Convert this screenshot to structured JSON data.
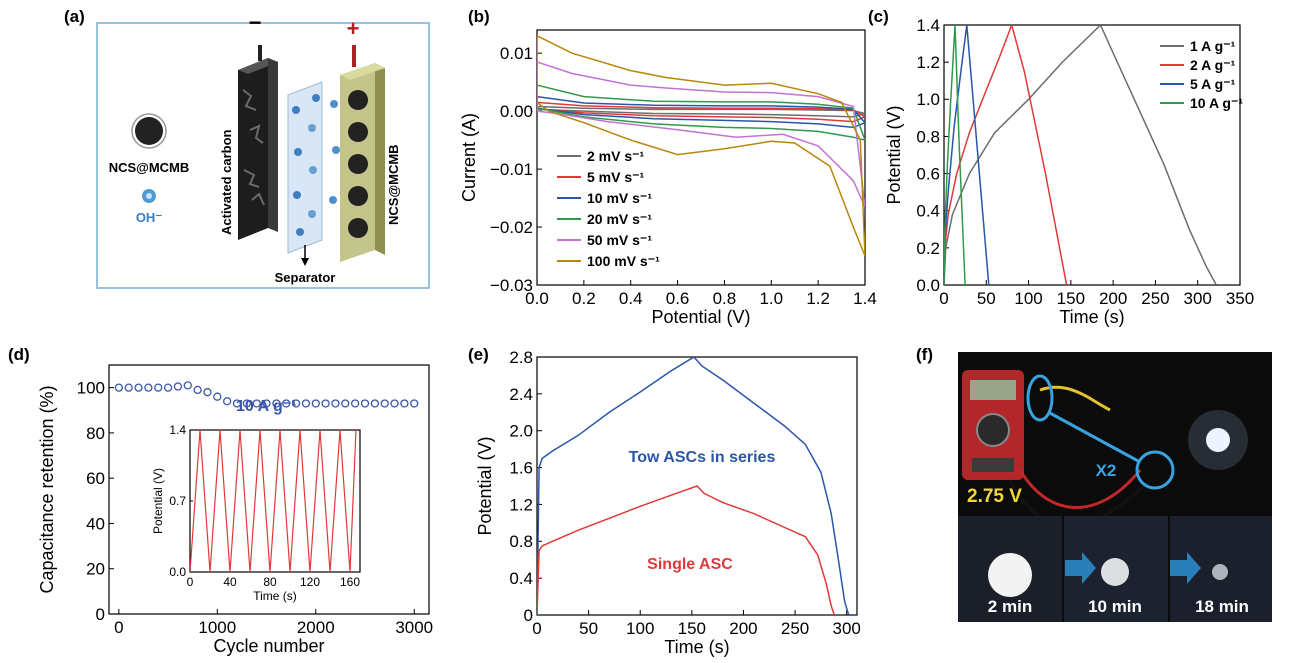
{
  "colors": {
    "gray": "#6d6d6d",
    "red": "#e0393a",
    "blue": "#2b56a8",
    "green": "#2f9a4b",
    "purple": "#c173d6",
    "gold": "#b8860b",
    "retention": "#3a56a8"
  },
  "panels": {
    "a": {
      "label": "(a)",
      "ncs_label": "NCS@MCMB",
      "oh_label": "OH⁻",
      "minus": "−",
      "plus": "+",
      "activated_carbon": "Activated carbon",
      "right_electrode": "NCS@MCMB",
      "separator": "Separator"
    },
    "f": {
      "label": "(f)",
      "voltage": "2.75 V",
      "x2": "X2",
      "times": [
        "2 min",
        "10 min",
        "18 min"
      ]
    }
  },
  "chart_data": [
    {
      "id": "b",
      "panel_label": "(b)",
      "type": "line",
      "xlabel": "Potential (V)",
      "ylabel": "Current (A)",
      "xlim": [
        0,
        1.4
      ],
      "ylim": [
        -0.03,
        0.014
      ],
      "xticks": [
        0.0,
        0.2,
        0.4,
        0.6,
        0.8,
        1.0,
        1.2,
        1.4
      ],
      "xtick_labels": [
        "0.0",
        "0.2",
        "0.4",
        "0.6",
        "0.8",
        "1.0",
        "1.2",
        "1.4"
      ],
      "yticks": [
        0.01,
        0.0,
        -0.01,
        -0.02,
        -0.03
      ],
      "ytick_labels": [
        "0.01",
        "0.00",
        "−0.01",
        "−0.02",
        "−0.03"
      ],
      "legend": "bottom-left",
      "series": [
        {
          "name": "2 mV s⁻¹",
          "color": "gray",
          "closed": true,
          "x": [
            0,
            0.2,
            0.5,
            0.8,
            1.0,
            1.2,
            1.35,
            1.4,
            1.35,
            1.2,
            1.0,
            0.8,
            0.5,
            0.2,
            0
          ],
          "y": [
            0.0008,
            0.0005,
            0.0003,
            0.0003,
            0.0003,
            0.0002,
            0.0001,
            -0.0004,
            -0.001,
            -0.0008,
            -0.0006,
            -0.0005,
            -0.0004,
            0.0,
            0.0003
          ]
        },
        {
          "name": "5 mV s⁻¹",
          "color": "red",
          "closed": true,
          "x": [
            0,
            0.2,
            0.5,
            0.8,
            1.0,
            1.2,
            1.35,
            1.4,
            1.35,
            1.2,
            1.0,
            0.8,
            0.5,
            0.2,
            0
          ],
          "y": [
            0.0015,
            0.0009,
            0.0006,
            0.0005,
            0.0005,
            0.0004,
            0.0002,
            -0.001,
            -0.0018,
            -0.0014,
            -0.0011,
            -0.001,
            -0.0008,
            -0.0003,
            0.0004
          ]
        },
        {
          "name": "10 mV s⁻¹",
          "color": "blue",
          "closed": true,
          "x": [
            0,
            0.2,
            0.5,
            0.8,
            1.0,
            1.2,
            1.35,
            1.4,
            1.35,
            1.2,
            1.0,
            0.8,
            0.5,
            0.2,
            0
          ],
          "y": [
            0.0025,
            0.0014,
            0.001,
            0.0009,
            0.0009,
            0.0007,
            0.0003,
            -0.002,
            -0.0028,
            -0.0022,
            -0.0018,
            -0.0016,
            -0.0013,
            -0.0006,
            0.0005
          ]
        },
        {
          "name": "20 mV s⁻¹",
          "color": "green",
          "closed": true,
          "x": [
            0,
            0.2,
            0.5,
            0.8,
            1.0,
            1.2,
            1.35,
            1.4,
            1.35,
            1.2,
            1.0,
            0.8,
            0.5,
            0.2,
            0
          ],
          "y": [
            0.0045,
            0.0025,
            0.0017,
            0.0016,
            0.0016,
            0.0012,
            0.0005,
            -0.005,
            -0.0045,
            -0.0035,
            -0.003,
            -0.0028,
            -0.0022,
            -0.001,
            0.0005
          ]
        },
        {
          "name": "50 mV s⁻¹",
          "color": "purple",
          "closed": true,
          "x": [
            0,
            0.15,
            0.4,
            0.55,
            0.8,
            1.0,
            1.2,
            1.35,
            1.4,
            1.35,
            1.2,
            1.05,
            0.85,
            0.6,
            0.3,
            0.1,
            0
          ],
          "y": [
            0.0085,
            0.0065,
            0.0045,
            0.004,
            0.0033,
            0.0032,
            0.0025,
            0.0008,
            -0.0165,
            -0.012,
            -0.006,
            -0.004,
            -0.0045,
            -0.0032,
            -0.0018,
            -0.0005,
            0.0
          ]
        },
        {
          "name": "100 mV s⁻¹",
          "color": "gold",
          "closed": true,
          "x": [
            0,
            0.15,
            0.4,
            0.55,
            0.8,
            1.0,
            1.2,
            1.3,
            1.38,
            1.4,
            1.35,
            1.25,
            1.1,
            1.0,
            0.8,
            0.6,
            0.4,
            0.2,
            0.05,
            0
          ],
          "y": [
            0.013,
            0.01,
            0.007,
            0.0058,
            0.0045,
            0.0048,
            0.003,
            0.0015,
            -0.005,
            -0.025,
            -0.02,
            -0.0095,
            -0.0055,
            -0.0052,
            -0.0065,
            -0.0075,
            -0.005,
            -0.002,
            0.0,
            0.0015
          ]
        }
      ]
    },
    {
      "id": "c",
      "panel_label": "(c)",
      "type": "line",
      "xlabel": "Time (s)",
      "ylabel": "Potential (V)",
      "xlim": [
        0,
        350
      ],
      "ylim": [
        0,
        1.4
      ],
      "xticks": [
        0,
        50,
        100,
        150,
        200,
        250,
        300,
        350
      ],
      "xtick_labels": [
        "0",
        "50",
        "100",
        "150",
        "200",
        "250",
        "300",
        "350"
      ],
      "yticks": [
        0.0,
        0.2,
        0.4,
        0.6,
        0.8,
        1.0,
        1.2,
        1.4
      ],
      "ytick_labels": [
        "0.0",
        "0.2",
        "0.4",
        "0.6",
        "0.8",
        "1.0",
        "1.2",
        "1.4"
      ],
      "legend": "top-right",
      "series": [
        {
          "name": "1 A g⁻¹",
          "color": "gray",
          "x": [
            0,
            2,
            10,
            30,
            60,
            100,
            140,
            185,
            200,
            230,
            260,
            290,
            310,
            322
          ],
          "y": [
            0,
            0.2,
            0.38,
            0.6,
            0.82,
            1.0,
            1.2,
            1.4,
            1.25,
            0.95,
            0.65,
            0.3,
            0.1,
            0
          ]
        },
        {
          "name": "2 A g⁻¹",
          "color": "red",
          "x": [
            0,
            1,
            5,
            15,
            30,
            50,
            65,
            80,
            95,
            120,
            145
          ],
          "y": [
            0,
            0.2,
            0.38,
            0.6,
            0.82,
            1.05,
            1.22,
            1.4,
            1.15,
            0.6,
            0
          ]
        },
        {
          "name": "5 A g⁻¹",
          "color": "blue",
          "x": [
            0,
            1,
            5,
            12,
            20,
            27,
            40,
            53
          ],
          "y": [
            0,
            0.25,
            0.5,
            0.85,
            1.15,
            1.4,
            0.7,
            0
          ]
        },
        {
          "name": "10 A g⁻¹",
          "color": "green",
          "x": [
            0,
            1,
            4,
            8,
            13,
            18,
            25
          ],
          "y": [
            0,
            0.3,
            0.65,
            1.0,
            1.4,
            0.75,
            0
          ]
        }
      ]
    },
    {
      "id": "d",
      "panel_label": "(d)",
      "type": "scatter",
      "xlabel": "Cycle number",
      "ylabel": "Capacitance retention (%)",
      "xlim": [
        -100,
        3150
      ],
      "ylim": [
        0,
        110
      ],
      "xticks": [
        0,
        1000,
        2000,
        3000
      ],
      "xtick_labels": [
        "0",
        "1000",
        "2000",
        "3000"
      ],
      "yticks": [
        0,
        20,
        40,
        60,
        80,
        100
      ],
      "ytick_labels": [
        "0",
        "20",
        "40",
        "60",
        "80",
        "100"
      ],
      "annotation": "10 A g⁻¹",
      "series": [
        {
          "name": "",
          "color": "retention",
          "x": [
            0,
            100,
            200,
            300,
            400,
            500,
            600,
            700,
            800,
            900,
            1000,
            1100,
            1200,
            1300,
            1400,
            1500,
            1600,
            1700,
            1800,
            1900,
            2000,
            2100,
            2200,
            2300,
            2400,
            2500,
            2600,
            2700,
            2800,
            2900,
            3000
          ],
          "y": [
            100,
            100,
            100,
            100,
            100,
            100,
            100.5,
            101,
            99,
            98,
            96,
            94,
            93,
            93,
            93,
            93,
            93,
            93,
            93,
            93,
            93,
            93,
            93,
            93,
            93,
            93,
            93,
            93,
            93,
            93,
            93
          ]
        }
      ],
      "inset": {
        "type": "line",
        "xlabel": "Time (s)",
        "ylabel": "Potential (V)",
        "xlim": [
          0,
          170
        ],
        "ylim": [
          0,
          1.4
        ],
        "xticks": [
          0,
          40,
          80,
          120,
          160
        ],
        "xtick_labels": [
          "0",
          "40",
          "80",
          "120",
          "160"
        ],
        "yticks": [
          0.0,
          0.7,
          1.4
        ],
        "ytick_labels": [
          "0.0",
          "0.7",
          "1.4"
        ],
        "series": [
          {
            "name": "",
            "color": "red",
            "x": [
              0,
              10,
              20,
              30,
              40,
              50,
              60,
              70,
              80,
              90,
              100,
              110,
              120,
              130,
              140,
              150,
              160,
              166
            ],
            "y": [
              0,
              1.4,
              0,
              1.4,
              0,
              1.4,
              0,
              1.4,
              0,
              1.4,
              0,
              1.4,
              0,
              1.4,
              0,
              1.4,
              0,
              1.4
            ]
          }
        ]
      }
    },
    {
      "id": "e",
      "panel_label": "(e)",
      "type": "line",
      "xlabel": "Time (s)",
      "ylabel": "Potential (V)",
      "xlim": [
        0,
        310
      ],
      "ylim": [
        0,
        2.8
      ],
      "xticks": [
        0,
        50,
        100,
        150,
        200,
        250,
        300
      ],
      "xtick_labels": [
        "0",
        "50",
        "100",
        "150",
        "200",
        "250",
        "300"
      ],
      "yticks": [
        0,
        0.4,
        0.8,
        1.2,
        1.6,
        2.0,
        2.4,
        2.8
      ],
      "ytick_labels": [
        "0",
        "0.4",
        "0.8",
        "1.2",
        "1.6",
        "2.0",
        "2.4",
        "2.8"
      ],
      "series": [
        {
          "name": "Tow ASCs in series",
          "color": "blue",
          "x": [
            0,
            2,
            5,
            15,
            40,
            70,
            100,
            130,
            152,
            160,
            180,
            210,
            240,
            260,
            275,
            285,
            292,
            298,
            302
          ],
          "y": [
            0,
            1.6,
            1.7,
            1.78,
            1.95,
            2.2,
            2.42,
            2.65,
            2.8,
            2.7,
            2.55,
            2.3,
            2.05,
            1.85,
            1.55,
            1.1,
            0.6,
            0.15,
            0
          ]
        },
        {
          "name": "Single ASC",
          "color": "red",
          "x": [
            0,
            2,
            5,
            15,
            40,
            70,
            100,
            130,
            155,
            162,
            180,
            210,
            240,
            260,
            272,
            280,
            285,
            288
          ],
          "y": [
            0,
            0.7,
            0.75,
            0.8,
            0.92,
            1.05,
            1.18,
            1.3,
            1.4,
            1.32,
            1.22,
            1.1,
            0.95,
            0.85,
            0.65,
            0.35,
            0.1,
            0
          ]
        }
      ]
    }
  ]
}
